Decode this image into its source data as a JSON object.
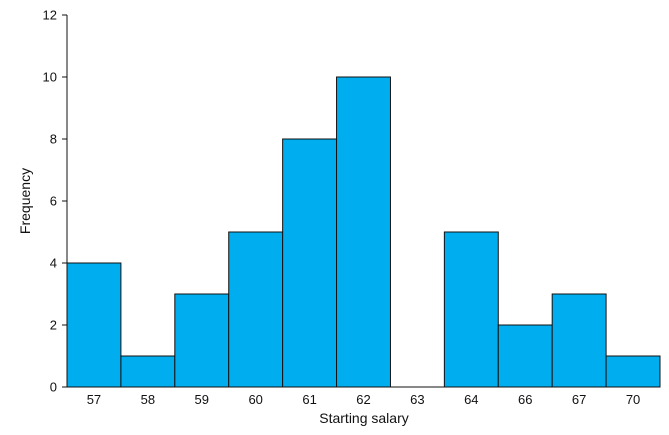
{
  "chart_data": {
    "type": "bar",
    "categories": [
      "57",
      "58",
      "59",
      "60",
      "61",
      "62",
      "63",
      "64",
      "66",
      "67",
      "70"
    ],
    "values": [
      4,
      1,
      3,
      5,
      8,
      10,
      0,
      5,
      2,
      3,
      1
    ],
    "title": "",
    "xlabel": "Starting salary",
    "ylabel": "Frequency",
    "ylim": [
      0,
      12
    ],
    "yticks": [
      0,
      2,
      4,
      6,
      8,
      10,
      12
    ],
    "grid": false,
    "bar_color": "#00aeef",
    "edge_color": "#111111"
  }
}
